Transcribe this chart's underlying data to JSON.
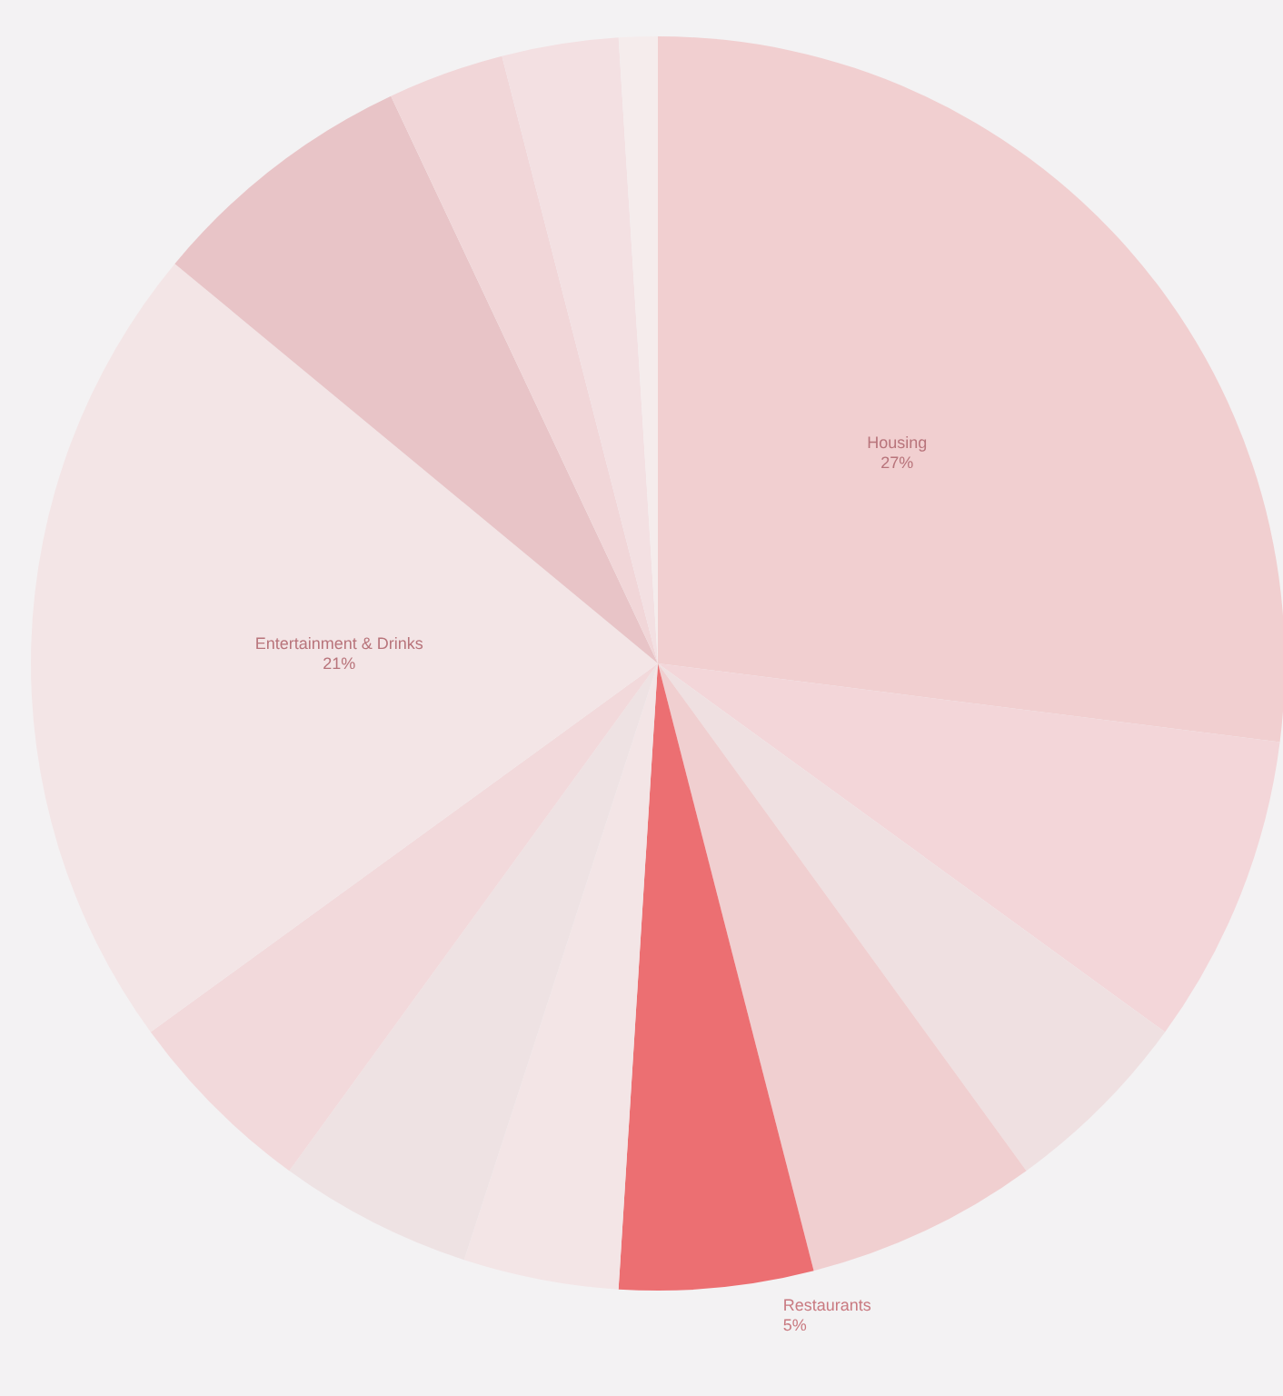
{
  "chart_data": {
    "type": "pie",
    "categories": [
      "Housing",
      null,
      null,
      null,
      "Restaurants",
      null,
      null,
      null,
      "Entertainment & Drinks",
      null,
      null,
      null,
      null
    ],
    "values": [
      27,
      8,
      5,
      6,
      5,
      4,
      5,
      5,
      21,
      7,
      3,
      3,
      1
    ],
    "value_labels": [
      "27%",
      null,
      null,
      null,
      "5%",
      null,
      null,
      null,
      "21%",
      null,
      null,
      null,
      null
    ],
    "colors": [
      "#f1cfd0",
      "#f3d6d9",
      "#efe0e1",
      "#f0cfd0",
      "#ec6f72",
      "#f3e5e6",
      "#eee2e3",
      "#f2d9db",
      "#f3e5e6",
      "#e8c4c7",
      "#f1d6d8",
      "#f3e0e2",
      "#f5ecec"
    ],
    "legend": false
  }
}
